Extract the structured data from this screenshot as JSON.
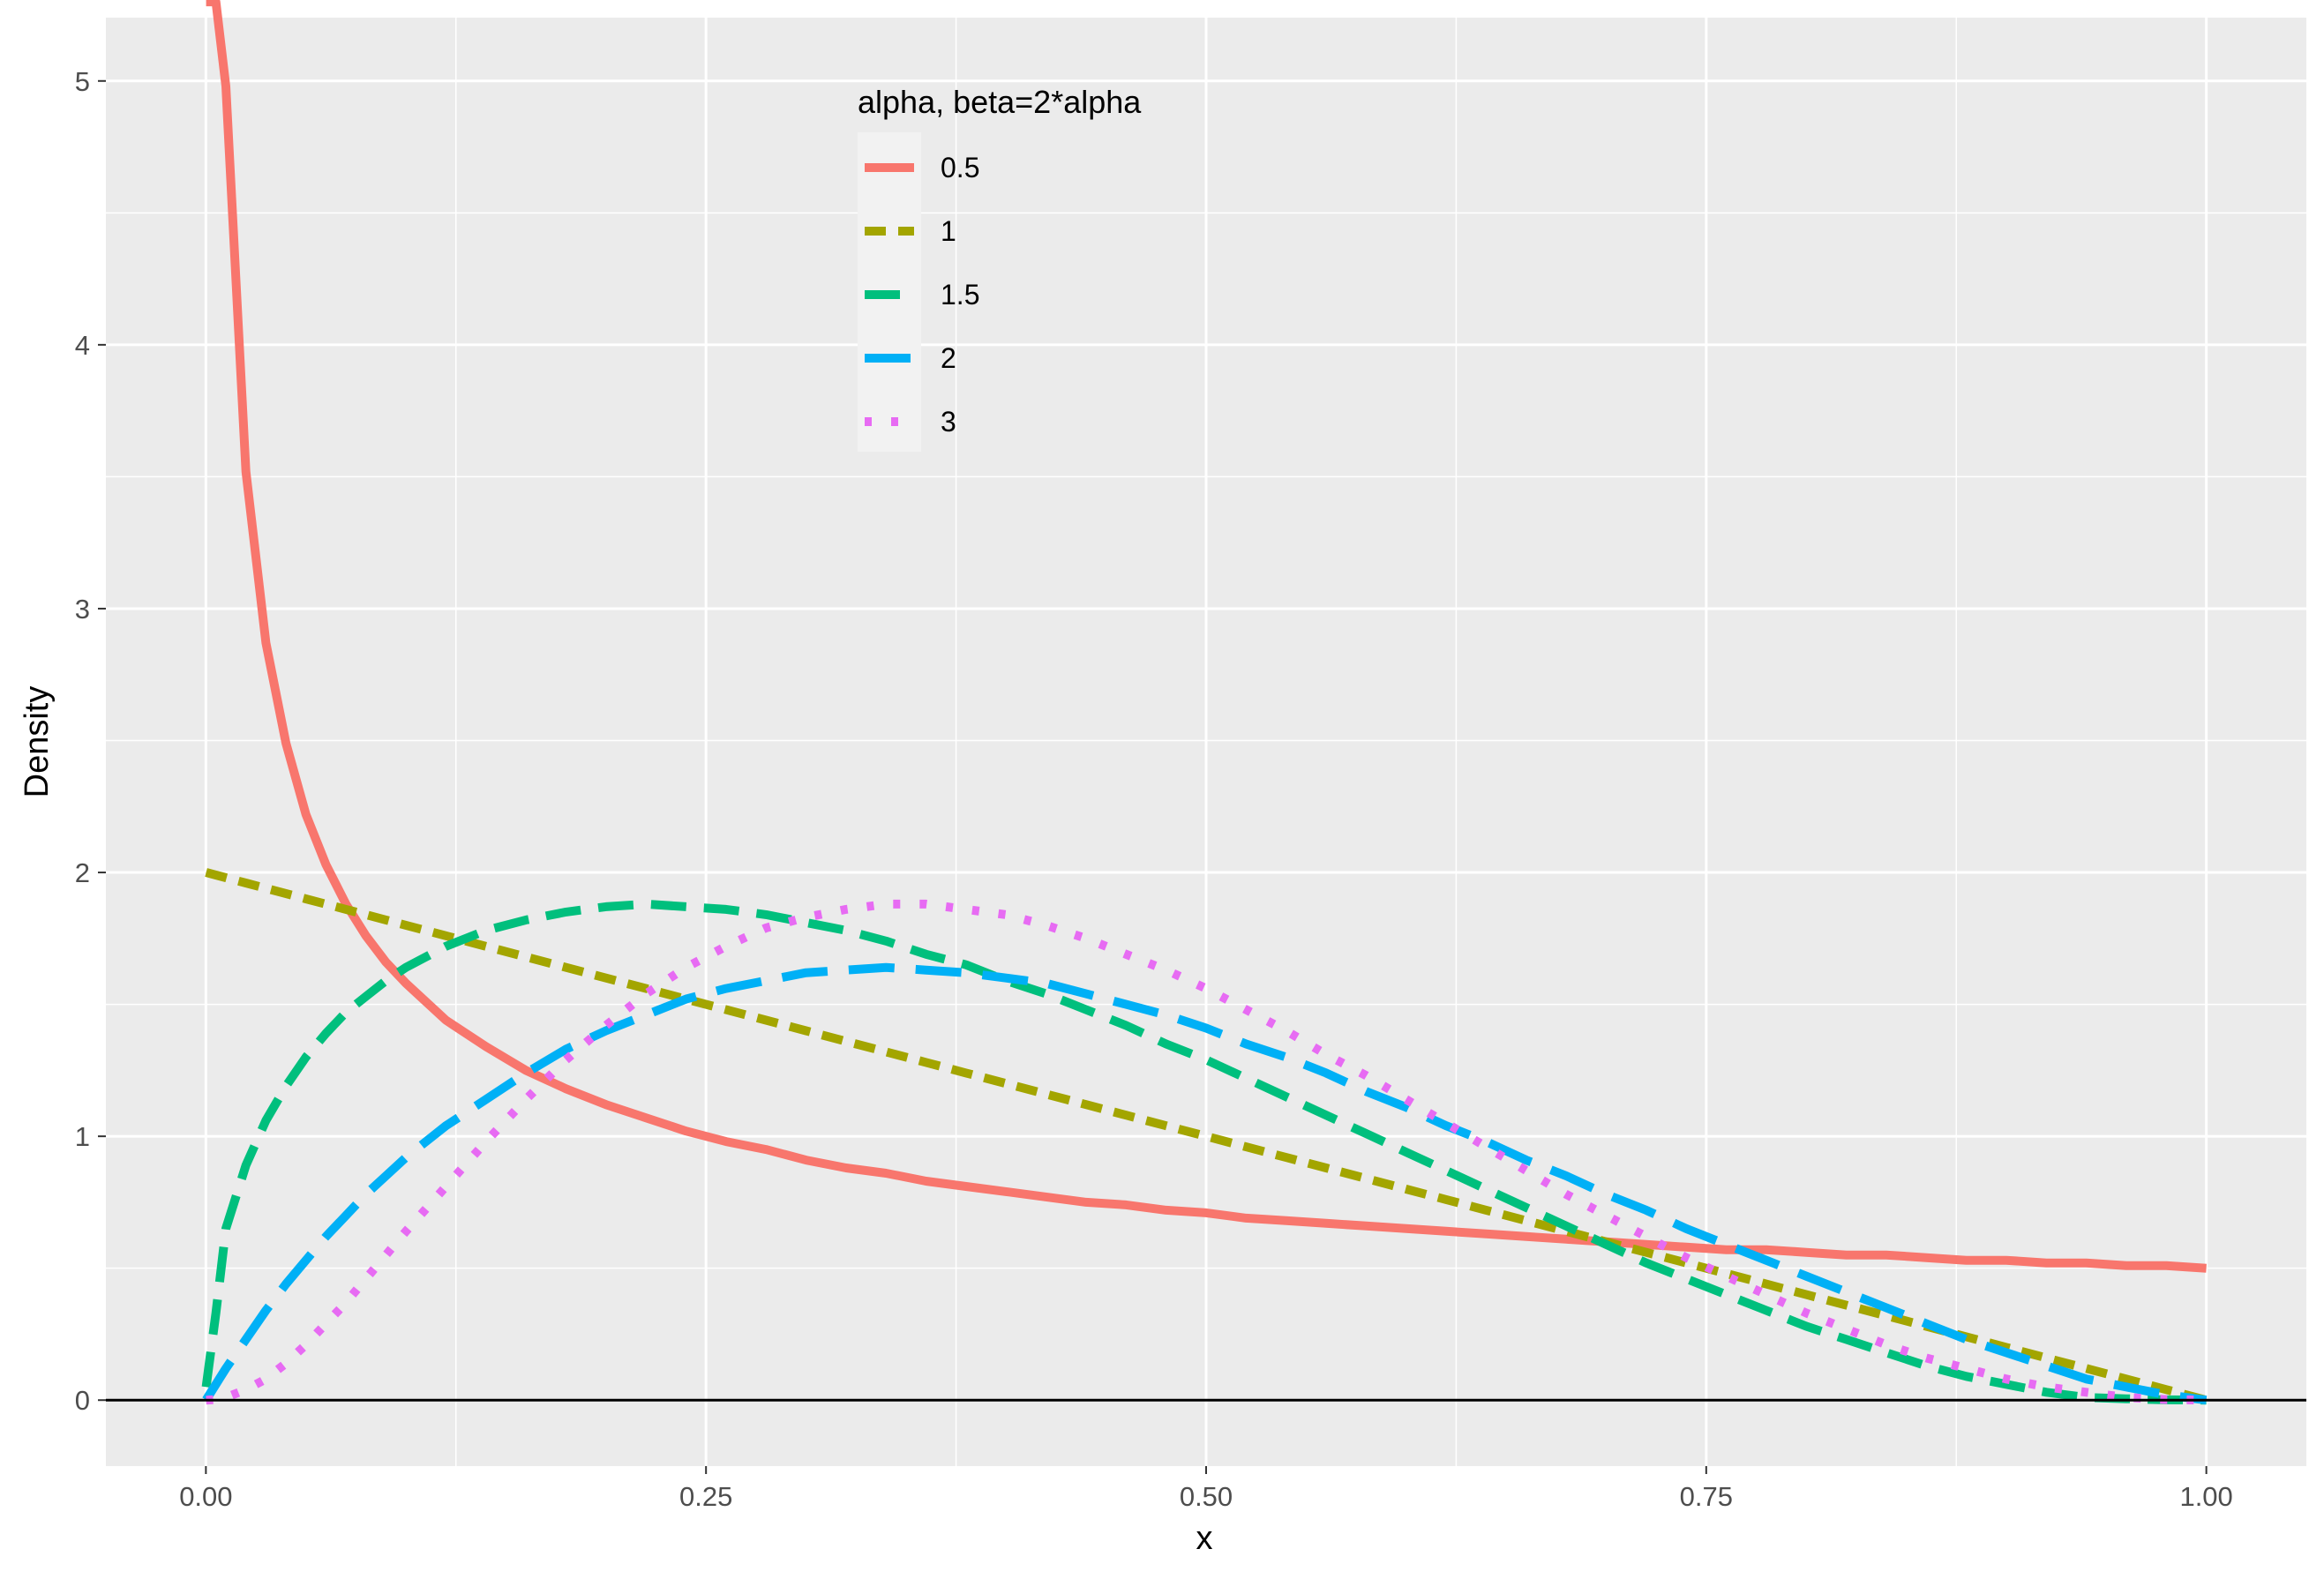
{
  "chart_data": {
    "type": "line",
    "title": "",
    "xlabel": "x",
    "ylabel": "Density",
    "xlim": [
      -0.05,
      1.05
    ],
    "ylim": [
      -0.25,
      5.24
    ],
    "x_ticks": [
      0,
      0.25,
      0.5,
      0.75,
      1.0
    ],
    "x_tick_labels": [
      "0.00",
      "0.25",
      "0.50",
      "0.75",
      "1.00"
    ],
    "y_ticks": [
      0,
      1,
      2,
      3,
      4,
      5
    ],
    "y_tick_labels": [
      "0",
      "1",
      "2",
      "3",
      "4",
      "5"
    ],
    "grid": true,
    "hline": 0,
    "legend": {
      "title": "alpha, beta=2*alpha",
      "position": "top-center-inside"
    },
    "x": [
      0.0001,
      0.005,
      0.01,
      0.02,
      0.03,
      0.04,
      0.05,
      0.06,
      0.07,
      0.08,
      0.09,
      0.1,
      0.12,
      0.14,
      0.16,
      0.18,
      0.2,
      0.22,
      0.24,
      0.26,
      0.28,
      0.3,
      0.32,
      0.34,
      0.36,
      0.38,
      0.4,
      0.42,
      0.44,
      0.46,
      0.48,
      0.5,
      0.52,
      0.54,
      0.56,
      0.58,
      0.6,
      0.62,
      0.64,
      0.66,
      0.68,
      0.7,
      0.72,
      0.74,
      0.76,
      0.78,
      0.8,
      0.82,
      0.84,
      0.86,
      0.88,
      0.9,
      0.92,
      0.94,
      0.96,
      0.98,
      1.0
    ],
    "series": [
      {
        "name": "0.5",
        "color": "#F8766D",
        "dash": "solid",
        "values": [
          5.3,
          5.3,
          4.98,
          3.52,
          2.87,
          2.49,
          2.22,
          2.03,
          1.88,
          1.76,
          1.66,
          1.58,
          1.44,
          1.34,
          1.25,
          1.18,
          1.12,
          1.07,
          1.02,
          0.98,
          0.95,
          0.91,
          0.88,
          0.86,
          0.83,
          0.81,
          0.79,
          0.77,
          0.75,
          0.74,
          0.72,
          0.71,
          0.69,
          0.68,
          0.67,
          0.66,
          0.65,
          0.64,
          0.63,
          0.62,
          0.61,
          0.6,
          0.59,
          0.58,
          0.57,
          0.57,
          0.56,
          0.55,
          0.55,
          0.54,
          0.53,
          0.53,
          0.52,
          0.52,
          0.51,
          0.51,
          0.5
        ]
      },
      {
        "name": "1",
        "color": "#A3A500",
        "dash": "short",
        "values": [
          2.0,
          1.99,
          1.98,
          1.96,
          1.94,
          1.92,
          1.9,
          1.88,
          1.86,
          1.84,
          1.82,
          1.8,
          1.76,
          1.72,
          1.68,
          1.64,
          1.6,
          1.56,
          1.52,
          1.48,
          1.44,
          1.4,
          1.36,
          1.32,
          1.28,
          1.24,
          1.2,
          1.16,
          1.12,
          1.08,
          1.04,
          1.0,
          0.96,
          0.92,
          0.88,
          0.84,
          0.8,
          0.76,
          0.72,
          0.68,
          0.64,
          0.6,
          0.56,
          0.52,
          0.48,
          0.44,
          0.4,
          0.36,
          0.32,
          0.28,
          0.24,
          0.2,
          0.16,
          0.12,
          0.08,
          0.04,
          0.0
        ]
      },
      {
        "name": "1.5",
        "color": "#00BF7D",
        "dash": "long",
        "values": [
          0.05,
          0.33,
          0.65,
          0.89,
          1.06,
          1.19,
          1.3,
          1.39,
          1.47,
          1.53,
          1.59,
          1.64,
          1.72,
          1.78,
          1.82,
          1.85,
          1.87,
          1.88,
          1.87,
          1.86,
          1.84,
          1.81,
          1.78,
          1.74,
          1.69,
          1.65,
          1.59,
          1.54,
          1.48,
          1.42,
          1.35,
          1.29,
          1.22,
          1.15,
          1.08,
          1.01,
          0.94,
          0.87,
          0.8,
          0.73,
          0.66,
          0.59,
          0.52,
          0.46,
          0.4,
          0.34,
          0.28,
          0.23,
          0.18,
          0.13,
          0.09,
          0.06,
          0.03,
          0.01,
          0.005,
          0.001,
          0.0
        ]
      },
      {
        "name": "2",
        "color": "#00B0F6",
        "dash": "longer",
        "values": [
          0.001,
          0.06,
          0.12,
          0.23,
          0.34,
          0.44,
          0.53,
          0.62,
          0.7,
          0.78,
          0.85,
          0.92,
          1.04,
          1.14,
          1.24,
          1.33,
          1.4,
          1.46,
          1.52,
          1.56,
          1.59,
          1.62,
          1.63,
          1.64,
          1.63,
          1.62,
          1.6,
          1.58,
          1.54,
          1.5,
          1.46,
          1.41,
          1.35,
          1.3,
          1.24,
          1.17,
          1.11,
          1.04,
          0.98,
          0.91,
          0.85,
          0.78,
          0.72,
          0.65,
          0.59,
          0.53,
          0.47,
          0.41,
          0.35,
          0.29,
          0.23,
          0.18,
          0.13,
          0.08,
          0.05,
          0.02,
          0.0
        ]
      },
      {
        "name": "3",
        "color": "#E76BF3",
        "dash": "dotted",
        "values": [
          0.0,
          0.002,
          0.01,
          0.04,
          0.08,
          0.14,
          0.21,
          0.29,
          0.37,
          0.46,
          0.55,
          0.64,
          0.81,
          0.98,
          1.14,
          1.29,
          1.42,
          1.54,
          1.64,
          1.72,
          1.79,
          1.83,
          1.86,
          1.88,
          1.88,
          1.86,
          1.84,
          1.8,
          1.75,
          1.69,
          1.63,
          1.56,
          1.48,
          1.4,
          1.31,
          1.23,
          1.14,
          1.05,
          0.96,
          0.87,
          0.78,
          0.7,
          0.62,
          0.54,
          0.47,
          0.4,
          0.33,
          0.27,
          0.21,
          0.16,
          0.12,
          0.08,
          0.05,
          0.03,
          0.01,
          0.002,
          0.0
        ]
      }
    ]
  }
}
